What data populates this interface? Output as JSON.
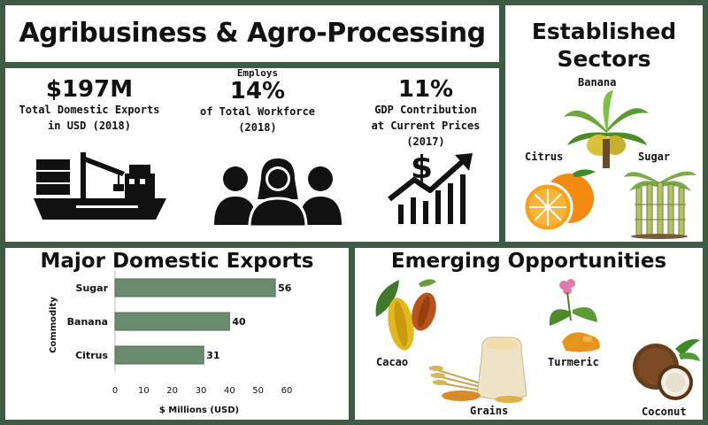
{
  "header": {
    "title": "Agribusiness & Agro-Processing"
  },
  "stats": [
    {
      "pre": "",
      "value": "$197M",
      "desc": "Total Domestic Exports\nin USD (2018)",
      "icon": "cargo-ship-icon"
    },
    {
      "pre": "Employs",
      "value": "14%",
      "desc": "of Total Workforce\n(2018)",
      "icon": "workforce-people-icon"
    },
    {
      "pre": "",
      "value": "11%",
      "desc": "GDP Contribution\nat Current Prices\n(2017)",
      "icon": "growth-chart-icon"
    }
  ],
  "established": {
    "title": "Established Sectors",
    "items": [
      {
        "label": "Banana",
        "icon": "banana-plant-icon"
      },
      {
        "label": "Citrus",
        "icon": "orange-fruit-icon"
      },
      {
        "label": "Sugar",
        "icon": "sugarcane-icon"
      }
    ]
  },
  "exports": {
    "title": "Major Domestic Exports"
  },
  "chart_data": {
    "type": "bar",
    "orientation": "horizontal",
    "categories": [
      "Sugar",
      "Banana",
      "Citrus"
    ],
    "values": [
      56,
      40,
      31
    ],
    "xlabel": "$ Millions (USD)",
    "ylabel": "Commodity",
    "xlim": [
      0,
      60
    ],
    "xticks": [
      0,
      10,
      20,
      30,
      40,
      50,
      60
    ],
    "grid": false,
    "bar_color": "#6b8b6f"
  },
  "emerging": {
    "title": "Emerging Opportunities",
    "items": [
      {
        "label": "Cacao",
        "icon": "cacao-pod-icon"
      },
      {
        "label": "Grains",
        "icon": "grain-sack-icon"
      },
      {
        "label": "Turmeric",
        "icon": "turmeric-plant-icon"
      },
      {
        "label": "Coconut",
        "icon": "coconut-icon"
      }
    ]
  },
  "colors": {
    "background": "#3f5a45",
    "panel": "#ffffff",
    "bar": "#6b8b6f",
    "text": "#111111"
  }
}
